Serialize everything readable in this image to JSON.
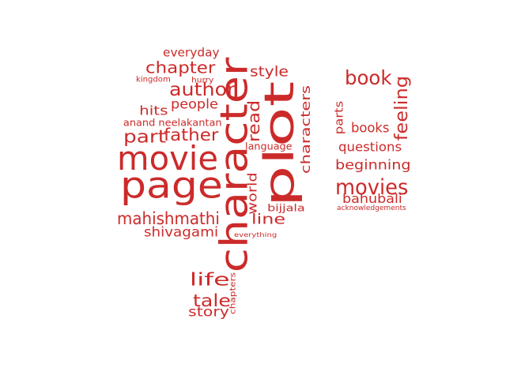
{
  "colors": {
    "background": "#ffffff",
    "word": "#cc2a2a"
  },
  "words": [
    {
      "text": "page"
    },
    {
      "text": "plot"
    },
    {
      "text": "character"
    },
    {
      "text": "movie"
    },
    {
      "text": "book"
    },
    {
      "text": "movies"
    },
    {
      "text": "author"
    },
    {
      "text": "chapter"
    },
    {
      "text": "mahishmathi"
    },
    {
      "text": "part"
    },
    {
      "text": "father"
    },
    {
      "text": "tale"
    },
    {
      "text": "life"
    },
    {
      "text": "feeling"
    },
    {
      "text": "read"
    },
    {
      "text": "characters"
    },
    {
      "text": "style"
    },
    {
      "text": "people"
    },
    {
      "text": "books"
    },
    {
      "text": "beginning"
    },
    {
      "text": "bahubali"
    },
    {
      "text": "shivagami"
    },
    {
      "text": "story"
    },
    {
      "text": "line"
    },
    {
      "text": "world"
    },
    {
      "text": "hits"
    },
    {
      "text": "everyday"
    },
    {
      "text": "questions"
    },
    {
      "text": "parts"
    },
    {
      "text": "anand neelakantan"
    },
    {
      "text": "language"
    },
    {
      "text": "bijjala"
    },
    {
      "text": "kingdom"
    },
    {
      "text": "hurry"
    },
    {
      "text": "chapters"
    },
    {
      "text": "everything"
    },
    {
      "text": "acknowledgements"
    }
  ]
}
